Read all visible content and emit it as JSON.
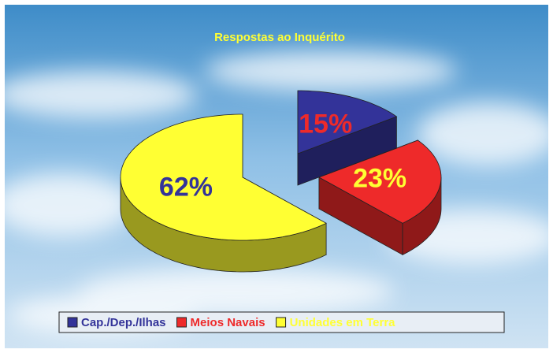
{
  "chart_data": {
    "type": "pie3d",
    "title": "Respostas ao Inquérito",
    "categories": [
      "Cap./Dep./Ilhas",
      "Meios Navais",
      "Unidades em Terra"
    ],
    "values": [
      15,
      23,
      62
    ],
    "value_labels": [
      "15%",
      "23%",
      "62%"
    ],
    "colors": [
      "#333399",
      "#ee2a2a",
      "#ffff33"
    ],
    "value_label_colors": [
      "#ee2a2a",
      "#ffff33",
      "#333399"
    ]
  }
}
